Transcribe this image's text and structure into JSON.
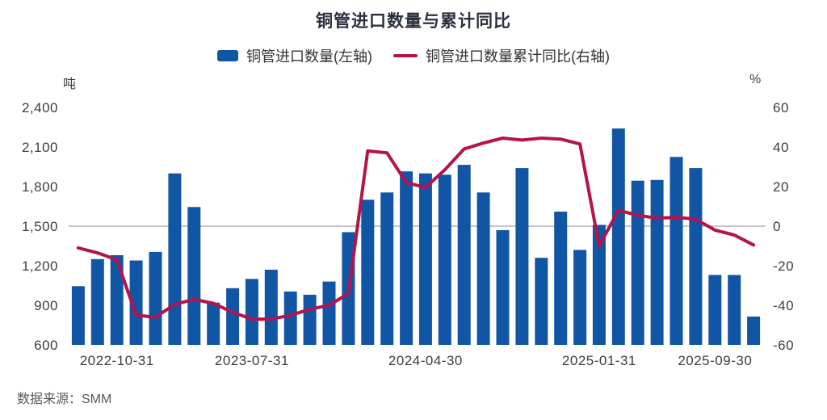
{
  "title": "铜管进口数量与累计同比",
  "source": "数据来源：SMM",
  "legend": {
    "bar_label": "铜管进口数量(左轴)",
    "line_label": "铜管进口数量累计同比(右轴)"
  },
  "colors": {
    "bar": "#1156A5",
    "line": "#B3134E",
    "zero_line": "#8c8c8c",
    "title_text": "#29303f",
    "tick_text": "#3d3d3d"
  },
  "chart_data": {
    "type": "bar+line combo, dual axis",
    "title": "铜管进口数量与累计同比",
    "left_axis": {
      "unit": "吨",
      "min": 600,
      "max": 2400,
      "step": 300,
      "tick_labels": [
        "600",
        "900",
        "1,200",
        "1,500",
        "1,800",
        "2,100",
        "2,400"
      ]
    },
    "right_axis": {
      "unit": "%",
      "min": -60,
      "max": 60,
      "step": 20,
      "tick_labels": [
        "-60",
        "-40",
        "-20",
        "0",
        "20",
        "40",
        "60"
      ]
    },
    "x_tick_labels": [
      {
        "index": 2,
        "label": "2022-10-31"
      },
      {
        "index": 9,
        "label": "2023-07-31"
      },
      {
        "index": 18,
        "label": "2024-04-30"
      },
      {
        "index": 27,
        "label": "2025-01-31"
      },
      {
        "index": 33,
        "label": "2025-09-30"
      }
    ],
    "zero_line": {
      "right_value": 0,
      "left_value": 1500,
      "color": "#8c8c8c"
    },
    "grid": "only zero line shown",
    "legend_position": "top center",
    "series": [
      {
        "name": "铜管进口数量(左轴)",
        "type": "bar",
        "axis": "left",
        "color": "#1156A5",
        "values": [
          1045,
          1250,
          1280,
          1240,
          1305,
          1900,
          1645,
          920,
          1030,
          1100,
          1170,
          1005,
          980,
          1080,
          1455,
          1700,
          1755,
          1915,
          1900,
          1890,
          1965,
          1755,
          1470,
          1940,
          1260,
          1610,
          1320,
          1510,
          2240,
          1845,
          1850,
          2025,
          1940,
          1130,
          1130,
          815
        ]
      },
      {
        "name": "铜管进口数量累计同比(右轴)",
        "type": "line",
        "axis": "right",
        "color": "#B3134E",
        "values": [
          -11,
          -13.5,
          -17,
          -45,
          -46,
          -39.5,
          -37,
          -39,
          -43.5,
          -47,
          -47,
          -45,
          -42,
          -40,
          -34,
          38,
          37,
          22,
          19.5,
          28.5,
          39,
          42,
          44.5,
          43.5,
          44.5,
          44,
          41.5,
          -10,
          8,
          5.5,
          4,
          4.5,
          3.5,
          -2,
          -4.5,
          -9.5
        ]
      }
    ]
  }
}
